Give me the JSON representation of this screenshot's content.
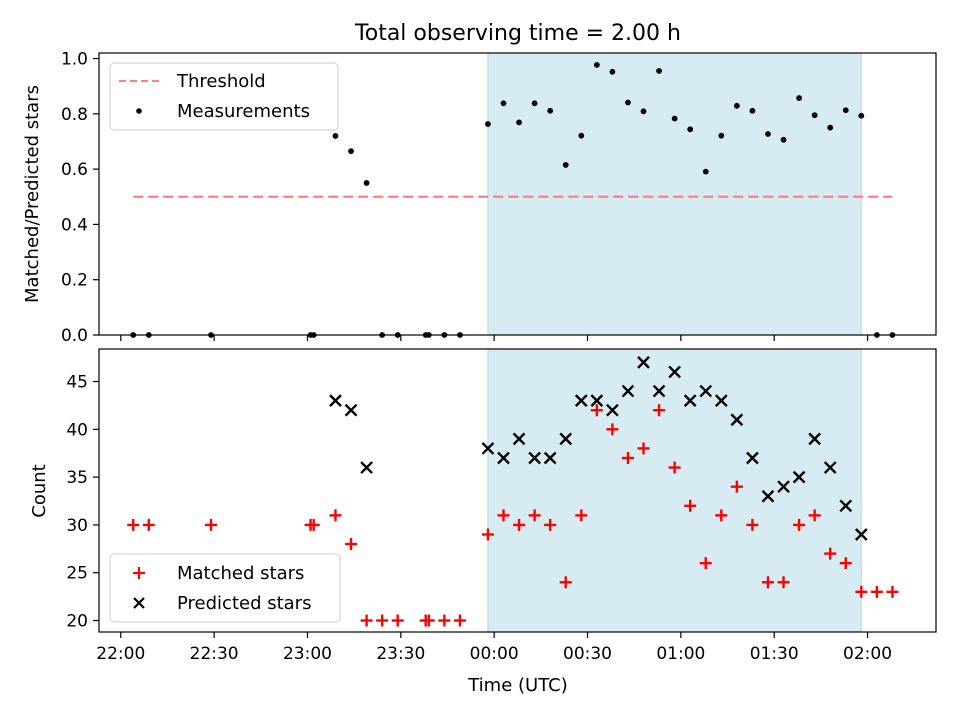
{
  "figure": {
    "title": "Total observing time = 2.00 h"
  },
  "chart_data": [
    {
      "type": "scatter",
      "title": "Total observing time = 2.00 h",
      "xlabel": "",
      "ylabel": "Matched/Predicted stars",
      "xlim": [
        "21:53",
        "02:22"
      ],
      "ylim": [
        0,
        1.02
      ],
      "xticks": [
        "22:00",
        "22:30",
        "23:00",
        "23:30",
        "00:00",
        "00:30",
        "01:00",
        "01:30",
        "02:00"
      ],
      "xtick_labels_visible": false,
      "yticks": [
        0.0,
        0.2,
        0.4,
        0.6,
        0.8,
        1.0
      ],
      "ytick_labels": [
        "0.0",
        "0.2",
        "0.4",
        "0.6",
        "0.8",
        "1.0"
      ],
      "highlight_span": {
        "start": "23:58",
        "end": "01:58",
        "color": "#add8e6"
      },
      "legend": {
        "location": "upper left",
        "entries": [
          "Threshold",
          "Measurements"
        ]
      },
      "series": [
        {
          "name": "Threshold",
          "style": "dashed-line",
          "color": "#ff7f7f",
          "x": [
            "22:04",
            "02:08"
          ],
          "y": [
            0.5,
            0.5
          ]
        },
        {
          "name": "Measurements",
          "style": "dot",
          "color": "#000000",
          "x": [
            "22:04",
            "22:09",
            "22:29",
            "23:01",
            "23:02",
            "23:09",
            "23:14",
            "23:19",
            "23:24",
            "23:29",
            "23:38",
            "23:39",
            "23:44",
            "23:49",
            "23:58",
            "00:03",
            "00:08",
            "00:13",
            "00:18",
            "00:23",
            "00:28",
            "00:33",
            "00:38",
            "00:43",
            "00:48",
            "00:53",
            "00:58",
            "01:03",
            "01:08",
            "01:13",
            "01:18",
            "01:23",
            "01:28",
            "01:33",
            "01:38",
            "01:43",
            "01:48",
            "01:53",
            "01:58",
            "02:03",
            "02:08"
          ],
          "y": [
            0.0,
            0.0,
            0.0,
            0.0,
            0.0,
            0.72,
            0.665,
            0.55,
            0.0,
            0.0,
            0.0,
            0.0,
            0.0,
            0.0,
            0.763,
            0.838,
            0.769,
            0.838,
            0.811,
            0.615,
            0.721,
            0.977,
            0.952,
            0.841,
            0.809,
            0.955,
            0.783,
            0.744,
            0.591,
            0.721,
            0.829,
            0.811,
            0.727,
            0.706,
            0.857,
            0.795,
            0.75,
            0.813,
            0.793,
            0.0,
            0.0
          ]
        }
      ]
    },
    {
      "type": "scatter",
      "xlabel": "Time (UTC)",
      "ylabel": "Count",
      "xlim": [
        "21:53",
        "02:22"
      ],
      "ylim": [
        18.8,
        48.4
      ],
      "xticks": [
        "22:00",
        "22:30",
        "23:00",
        "23:30",
        "00:00",
        "00:30",
        "01:00",
        "01:30",
        "02:00"
      ],
      "xtick_labels": [
        "22:00",
        "22:30",
        "23:00",
        "23:30",
        "00:00",
        "00:30",
        "01:00",
        "01:30",
        "02:00"
      ],
      "yticks": [
        20,
        25,
        30,
        35,
        40,
        45
      ],
      "ytick_labels": [
        "20",
        "25",
        "30",
        "35",
        "40",
        "45"
      ],
      "highlight_span": {
        "start": "23:58",
        "end": "01:58",
        "color": "#add8e6"
      },
      "legend": {
        "location": "lower left",
        "entries": [
          "Matched stars",
          "Predicted stars"
        ]
      },
      "series": [
        {
          "name": "Matched stars",
          "marker": "plus",
          "color": "#ff0000",
          "x": [
            "22:04",
            "22:09",
            "22:29",
            "23:01",
            "23:02",
            "23:09",
            "23:14",
            "23:19",
            "23:24",
            "23:29",
            "23:38",
            "23:39",
            "23:44",
            "23:49",
            "23:58",
            "00:03",
            "00:08",
            "00:13",
            "00:18",
            "00:23",
            "00:28",
            "00:33",
            "00:38",
            "00:43",
            "00:48",
            "00:53",
            "00:58",
            "01:03",
            "01:08",
            "01:13",
            "01:18",
            "01:23",
            "01:28",
            "01:33",
            "01:38",
            "01:43",
            "01:48",
            "01:53",
            "01:58",
            "02:03",
            "02:08"
          ],
          "y": [
            30,
            30,
            30,
            30,
            30,
            31,
            28,
            20,
            20,
            20,
            20,
            20,
            20,
            20,
            29,
            31,
            30,
            31,
            30,
            24,
            31,
            42,
            40,
            37,
            38,
            42,
            36,
            32,
            26,
            31,
            34,
            30,
            24,
            24,
            30,
            31,
            27,
            26,
            23,
            23,
            23
          ]
        },
        {
          "name": "Predicted stars",
          "marker": "x",
          "color": "#000000",
          "x": [
            "23:09",
            "23:14",
            "23:19",
            "23:58",
            "00:03",
            "00:08",
            "00:13",
            "00:18",
            "00:23",
            "00:28",
            "00:33",
            "00:38",
            "00:43",
            "00:48",
            "00:53",
            "00:58",
            "01:03",
            "01:08",
            "01:13",
            "01:18",
            "01:23",
            "01:28",
            "01:33",
            "01:38",
            "01:43",
            "01:48",
            "01:53",
            "01:58"
          ],
          "y": [
            43,
            42,
            36,
            38,
            37,
            39,
            37,
            37,
            39,
            43,
            43,
            42,
            44,
            47,
            44,
            46,
            43,
            44,
            43,
            41,
            37,
            33,
            34,
            35,
            39,
            36,
            32,
            29
          ]
        }
      ]
    }
  ]
}
